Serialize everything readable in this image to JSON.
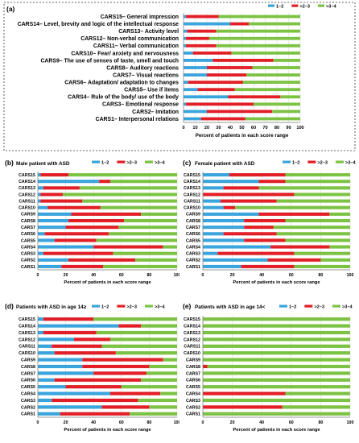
{
  "colors": {
    "s12": "#3aa4dd",
    "s23": "#e21f26",
    "s34": "#7cc243"
  },
  "chart_data": [
    {
      "panel": "(a)",
      "type": "bar",
      "stacked": true,
      "orientation": "horizontal",
      "title": "",
      "xlabel": "Percent of patients in each score range",
      "xlim": [
        0,
        100
      ],
      "xticks": [
        0,
        10,
        20,
        30,
        40,
        50,
        60,
        70,
        80,
        90,
        100
      ],
      "legend_position": "top-right",
      "categories": [
        "CARS15– General impression",
        "CARS14– Level, brevity and logic of the intellectual response",
        "CARS13– Activity level",
        "CARS12– Non-verbal communication",
        "CARS11– Verbal communication",
        "CARS10– Fear/ anxiety and nervousness",
        "CARS9– The use of senses of taste, smell and touch",
        "CARS8– Auditory reactions",
        "CARS7– Visual reactions",
        "CARS6– Adaptation/ adaptation to changes",
        "CARS5– Use if items",
        "CARS4– Rule of the body/ use of the body",
        "CARS3– Emotional response",
        "CARS2– Imitation",
        "CARS1– Interpersonal relations"
      ],
      "series": [
        {
          "name": "1–2",
          "values": [
            2,
            40,
            3,
            2,
            2,
            8,
            25,
            20,
            20,
            4,
            12,
            38,
            2,
            20,
            15
          ]
        },
        {
          "name": ">2–3",
          "values": [
            28,
            16,
            25,
            20,
            26,
            33,
            52,
            39,
            34,
            47,
            32,
            45,
            58,
            56,
            38
          ]
        },
        {
          "name": ">3–4",
          "values": [
            70,
            44,
            72,
            78,
            72,
            59,
            23,
            41,
            46,
            49,
            56,
            17,
            40,
            24,
            47
          ]
        }
      ]
    },
    {
      "panel": "(b)",
      "type": "bar",
      "stacked": true,
      "orientation": "horizontal",
      "title": "Male patient with ASD",
      "xlabel": "Percent of patients in each score range",
      "xlim": [
        0,
        100
      ],
      "xticks": [
        0,
        20,
        40,
        60,
        80,
        100
      ],
      "legend_position": "top-right",
      "categories": [
        "CARS15",
        "CARS14",
        "CARS13",
        "CARS12",
        "CARS11",
        "CARS10",
        "CARS9",
        "CARS8",
        "CARS7",
        "CARS6",
        "CARS5",
        "CARS4",
        "CARS3",
        "CARS2",
        "CARS1"
      ],
      "series": [
        {
          "name": "1–2",
          "values": [
            2,
            44,
            4,
            2,
            2,
            7,
            24,
            22,
            20,
            5,
            12,
            40,
            4,
            22,
            17
          ]
        },
        {
          "name": ">2–3",
          "values": [
            20,
            8,
            26,
            16,
            30,
            38,
            50,
            40,
            38,
            46,
            30,
            50,
            50,
            48,
            30
          ]
        },
        {
          "name": ">3–4",
          "values": [
            78,
            48,
            70,
            82,
            68,
            55,
            26,
            38,
            42,
            49,
            58,
            10,
            46,
            30,
            53
          ]
        }
      ]
    },
    {
      "panel": "(c)",
      "type": "bar",
      "stacked": true,
      "orientation": "horizontal",
      "title": "Female patient with ASD",
      "xlabel": "Percent of patients in each score range",
      "xlim": [
        0,
        100
      ],
      "xticks": [
        0,
        20,
        40,
        60,
        80,
        100
      ],
      "legend_position": "top-right",
      "categories": [
        "CARS15",
        "CARS14",
        "CARS13",
        "CARS12",
        "CARS11",
        "CARS10",
        "CARS9",
        "CARS8",
        "CARS7",
        "CARS6",
        "CARS5",
        "CARS4",
        "CARS3",
        "CARS2",
        "CARS1"
      ],
      "series": [
        {
          "name": "1–2",
          "values": [
            18,
            38,
            14,
            0,
            12,
            14,
            38,
            28,
            28,
            14,
            28,
            46,
            10,
            44,
            26
          ]
        },
        {
          "name": ">2–3",
          "values": [
            38,
            18,
            24,
            62,
            38,
            8,
            48,
            28,
            20,
            36,
            28,
            40,
            52,
            36,
            36
          ]
        },
        {
          "name": ">3–4",
          "values": [
            44,
            44,
            62,
            38,
            50,
            78,
            14,
            44,
            52,
            50,
            44,
            14,
            38,
            20,
            38
          ]
        }
      ]
    },
    {
      "panel": "(d)",
      "type": "bar",
      "stacked": true,
      "orientation": "horizontal",
      "title": "Patients with ASD in age 14≥",
      "xlabel": "Percent of patients in each score range",
      "xlim": [
        0,
        100
      ],
      "xticks": [
        0,
        20,
        40,
        60,
        80,
        100
      ],
      "legend_position": "top-right",
      "categories": [
        "CARS15",
        "CARS14",
        "CARS13",
        "CARS12",
        "CARS11",
        "CARS10",
        "CARS9",
        "CARS8",
        "CARS7",
        "CARS6",
        "CARS5",
        "CARS4",
        "CARS3",
        "CARS2",
        "CARS1"
      ],
      "series": [
        {
          "name": "1–2",
          "values": [
            4,
            58,
            4,
            26,
            10,
            12,
            32,
            32,
            40,
            12,
            20,
            52,
            10,
            46,
            16
          ]
        },
        {
          "name": ">2–3",
          "values": [
            36,
            16,
            38,
            26,
            36,
            44,
            58,
            48,
            38,
            62,
            40,
            36,
            62,
            34,
            50
          ]
        },
        {
          "name": ">3–4",
          "values": [
            60,
            26,
            58,
            48,
            54,
            44,
            10,
            20,
            22,
            26,
            40,
            12,
            28,
            20,
            34
          ]
        }
      ]
    },
    {
      "panel": "(e)",
      "type": "bar",
      "stacked": true,
      "orientation": "horizontal",
      "title": "Patients with ASD in age 14<",
      "xlabel": "Percent of patients in each score range",
      "xlim": [
        0,
        100
      ],
      "xticks": [
        0,
        20,
        40,
        60,
        80,
        100
      ],
      "legend_position": "top-right",
      "categories": [
        "CARS15",
        "CARS14",
        "CARS13",
        "CARS12",
        "CARS11",
        "CARS10",
        "CARS9",
        "CARS8",
        "CARS7",
        "CARS6",
        "CARS5",
        "CARS4",
        "CARS3",
        "CARS2",
        "CARS1"
      ],
      "series": [
        {
          "name": "1–2",
          "values": [
            0,
            0,
            0,
            0,
            0,
            0,
            0,
            0,
            0,
            0,
            0,
            0,
            0,
            0,
            0
          ]
        },
        {
          "name": ">2–3",
          "values": [
            0,
            0,
            0,
            0,
            0,
            0,
            0,
            3,
            0,
            0,
            0,
            56,
            0,
            54,
            0
          ]
        },
        {
          "name": ">3–4",
          "values": [
            100,
            100,
            100,
            100,
            100,
            100,
            100,
            97,
            100,
            100,
            100,
            44,
            100,
            46,
            100
          ]
        }
      ]
    }
  ]
}
